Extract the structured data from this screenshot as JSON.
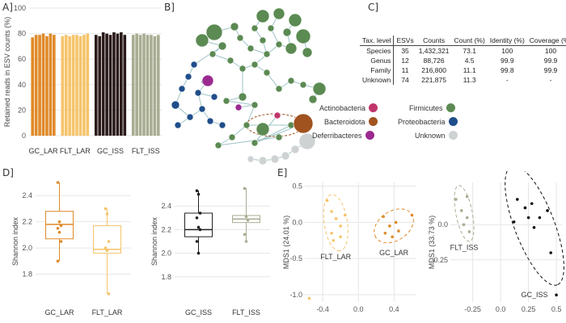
{
  "panels": {
    "a": "A]",
    "b": "B]",
    "c": "C]",
    "d": "D]",
    "e": "E]"
  },
  "chart_data": [
    {
      "id": "A",
      "type": "bar",
      "ylabel": "Retained reads in ESV counts (%)",
      "ylim": [
        0,
        100
      ],
      "yticks": [
        0,
        20,
        40,
        60,
        80,
        100
      ],
      "groups": [
        {
          "name": "GC_LAR",
          "color": "#e08a2a",
          "values": [
            77,
            79,
            79,
            80,
            78,
            80,
            79
          ]
        },
        {
          "name": "FLT_LAR",
          "color": "#f5c46b",
          "values": [
            78,
            79,
            78,
            79,
            79,
            78,
            79,
            80
          ]
        },
        {
          "name": "GC_ISS",
          "color": "#2b1b1b",
          "values": [
            79,
            78,
            81,
            80,
            79,
            81,
            80,
            81,
            79
          ]
        },
        {
          "name": "FLT_ISS",
          "color": "#a8ad92",
          "values": [
            79,
            80,
            79,
            80,
            79,
            79,
            78,
            79
          ]
        }
      ],
      "grid": true
    },
    {
      "id": "C",
      "type": "table",
      "headers": [
        "Tax. level",
        "ESVs",
        "Counts",
        "Count (%)",
        "Identity (%)",
        "Coverage (%)"
      ],
      "rows": [
        [
          "Species",
          "35",
          "1,432,321",
          "73.1",
          "100",
          "100"
        ],
        [
          "Genus",
          "12",
          "88,726",
          "4.5",
          "99.9",
          "99.9"
        ],
        [
          "Family",
          "11",
          "216,800",
          "11.1",
          "99.8",
          "99.9"
        ],
        [
          "Unknown",
          "74",
          "221,875",
          "11.3",
          "-",
          "-"
        ]
      ]
    },
    {
      "id": "D1",
      "type": "box",
      "ylabel": "Shannon index",
      "ylim": [
        1.6,
        2.5
      ],
      "yticks": [
        1.8,
        2.0,
        2.2,
        2.4
      ],
      "groups": [
        {
          "name": "GC_LAR",
          "color": "#e08a2a",
          "q1": 2.07,
          "median": 2.18,
          "q3": 2.28,
          "min": 1.9,
          "max": 2.5,
          "points": [
            2.5,
            2.2,
            2.17,
            2.15,
            2.12,
            2.05,
            1.9
          ]
        },
        {
          "name": "FLT_LAR",
          "color": "#f5c46b",
          "q1": 1.96,
          "median": 1.99,
          "q3": 2.17,
          "min": 1.65,
          "max": 2.3,
          "points": [
            2.3,
            2.26,
            2.05,
            2.0,
            1.98,
            1.65
          ]
        }
      ]
    },
    {
      "id": "D2",
      "type": "box",
      "ylabel": "Shannon index",
      "ylim": [
        1.6,
        2.6
      ],
      "yticks": [
        1.8,
        2.0,
        2.2,
        2.4
      ],
      "groups": [
        {
          "name": "GC_ISS",
          "color": "#222222",
          "q1": 2.14,
          "median": 2.2,
          "q3": 2.34,
          "min": 2.0,
          "max": 2.53,
          "points": [
            2.53,
            2.5,
            2.34,
            2.3,
            2.22,
            2.2,
            2.1,
            2.0
          ]
        },
        {
          "name": "FLT_ISS",
          "color": "#a8ad92",
          "q1": 2.26,
          "median": 2.29,
          "q3": 2.32,
          "min": 2.1,
          "max": 2.55,
          "points": [
            2.55,
            2.31,
            2.28,
            2.16,
            2.1
          ]
        }
      ]
    },
    {
      "id": "E1",
      "type": "scatter",
      "ylabel": "MDS1 (24.01 %)",
      "xlim": [
        -0.6,
        0.65
      ],
      "ylim": [
        -1.1,
        0.55
      ],
      "xticks": [
        -0.4,
        0.0,
        0.4
      ],
      "yticks": [
        -1.0,
        -0.5,
        0.0,
        0.5
      ],
      "series": [
        {
          "name": "FLT_LAR",
          "color": "#f5c46b",
          "points": [
            [
              -0.35,
              0.3
            ],
            [
              -0.3,
              0.15
            ],
            [
              -0.25,
              0.05
            ],
            [
              -0.2,
              -0.05
            ],
            [
              -0.3,
              -0.15
            ],
            [
              -0.2,
              -0.2
            ],
            [
              -0.15,
              0.1
            ],
            [
              -0.28,
              -0.25
            ],
            [
              -0.55,
              -1.05
            ]
          ]
        },
        {
          "name": "GC_LAR",
          "color": "#e08a2a",
          "points": [
            [
              0.28,
              0.08
            ],
            [
              0.35,
              -0.05
            ],
            [
              0.42,
              0.0
            ],
            [
              0.3,
              -0.15
            ],
            [
              0.45,
              -0.12
            ],
            [
              0.6,
              0.1
            ],
            [
              0.38,
              -0.2
            ]
          ]
        }
      ]
    },
    {
      "id": "E2",
      "type": "scatter",
      "ylabel": "MDS1 (33.73 %)",
      "xlim": [
        -0.45,
        0.55
      ],
      "ylim": [
        -0.55,
        0.3
      ],
      "xticks": [
        -0.25,
        0.0,
        0.25,
        0.5
      ],
      "yticks": [
        -0.25,
        0.0
      ],
      "series": [
        {
          "name": "FLT_ISS",
          "color": "#a8ad92",
          "points": [
            [
              -0.4,
              0.18
            ],
            [
              -0.35,
              0.1
            ],
            [
              -0.3,
              0.05
            ],
            [
              -0.28,
              -0.05
            ],
            [
              -0.33,
              0.0
            ],
            [
              -0.3,
              0.2
            ]
          ]
        },
        {
          "name": "GC_ISS",
          "color": "#111111",
          "points": [
            [
              0.15,
              0.18
            ],
            [
              0.22,
              0.12
            ],
            [
              0.25,
              0.05
            ],
            [
              0.3,
              -0.02
            ],
            [
              0.35,
              0.05
            ],
            [
              0.28,
              0.15
            ],
            [
              0.12,
              0.02
            ],
            [
              0.45,
              -0.2
            ],
            [
              0.5,
              -0.5
            ],
            [
              0.42,
              0.1
            ]
          ]
        }
      ]
    }
  ],
  "network_legend": [
    {
      "label": "Actinobacteria",
      "color": "#c0366b"
    },
    {
      "label": "Bacteroidota",
      "color": "#a0531f"
    },
    {
      "label": "Deferribacteres",
      "color": "#9b2a90"
    },
    {
      "label": "Firmicutes",
      "color": "#5b8a52"
    },
    {
      "label": "Proteobacteria",
      "color": "#1f4e8a"
    },
    {
      "label": "Unknown",
      "color": "#cfd2d3"
    }
  ],
  "colors": {
    "gc_lar": "#e08a2a",
    "flt_lar": "#f5c46b",
    "gc_iss": "#2b1b1b",
    "flt_iss": "#a8ad92",
    "grid": "#e6e6e6"
  }
}
